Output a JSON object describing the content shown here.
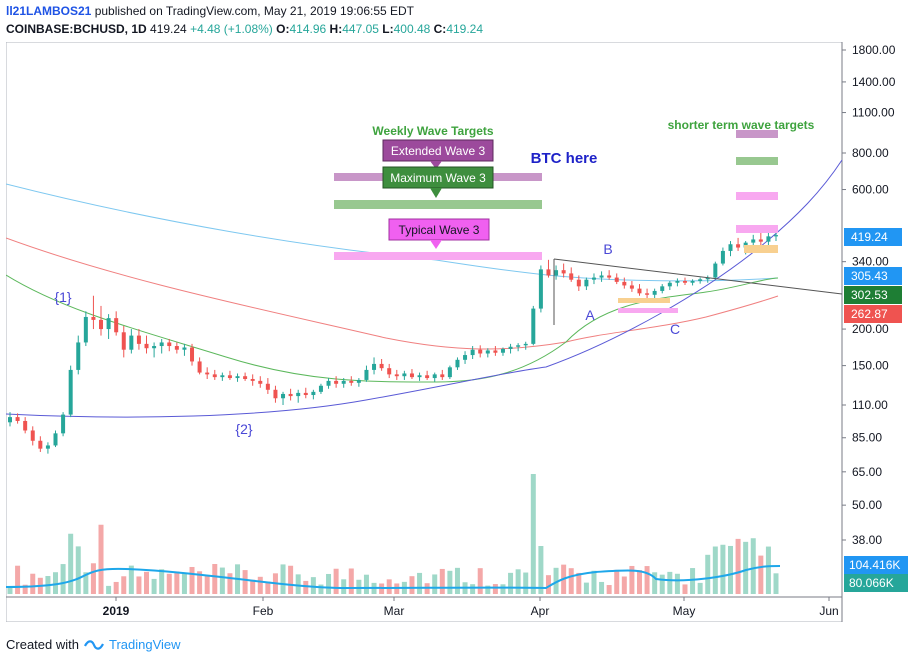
{
  "header": {
    "author": "ll21LAMBOS21",
    "published_text": "published on TradingView.com, May 21, 2019 19:06:55 EDT",
    "symbol": "COINBASE:BCHUSD, 1D",
    "last": "419.24",
    "change": "+4.48 (+1.08%)",
    "o_label": "O:",
    "o_value": "414.96",
    "h_label": "H:",
    "h_value": "447.05",
    "l_label": "L:",
    "l_value": "400.48",
    "c_label": "C:",
    "c_value": "419.24"
  },
  "footer": {
    "created_with": "Created with",
    "brand": "TradingView"
  },
  "chart_data": {
    "type": "candlestick",
    "y_scale": "log",
    "y_ticks": [
      "1800.00",
      "1400.00",
      "1100.00",
      "800.00",
      "600.00",
      "340.00",
      "200.00",
      "150.00",
      "110.00",
      "85.00",
      "65.00",
      "50.00",
      "38.00"
    ],
    "y_tick_values": [
      1800,
      1400,
      1100,
      800,
      600,
      340,
      200,
      150,
      110,
      85,
      65,
      50,
      38
    ],
    "x_labels": [
      "2019",
      "Feb",
      "Mar",
      "Apr",
      "May",
      "Jun"
    ],
    "price_tags": [
      {
        "label": "419.24",
        "value": 419.24,
        "color": "#2196f3"
      },
      {
        "label": "305.43",
        "value": 305.43,
        "color": "#2196f3"
      },
      {
        "label": "302.53",
        "value": 302.53,
        "color": "#1e7e34"
      },
      {
        "label": "262.87",
        "value": 262.87,
        "color": "#ef5350"
      }
    ],
    "volume_tags": [
      {
        "label": "104.416K",
        "color": "#2196f3"
      },
      {
        "label": "80.066K",
        "color": "#26a69a"
      }
    ],
    "candles": [
      [
        96,
        104,
        93,
        100
      ],
      [
        100,
        103,
        95,
        97
      ],
      [
        97,
        100,
        88,
        90
      ],
      [
        90,
        93,
        80,
        83
      ],
      [
        83,
        86,
        76,
        78
      ],
      [
        78,
        82,
        75,
        80
      ],
      [
        80,
        90,
        79,
        88
      ],
      [
        88,
        104,
        86,
        102
      ],
      [
        102,
        150,
        100,
        145
      ],
      [
        145,
        190,
        140,
        180
      ],
      [
        180,
        230,
        175,
        220
      ],
      [
        220,
        260,
        200,
        215
      ],
      [
        215,
        240,
        190,
        200
      ],
      [
        200,
        225,
        185,
        218
      ],
      [
        218,
        230,
        190,
        195
      ],
      [
        195,
        205,
        160,
        170
      ],
      [
        170,
        200,
        165,
        190
      ],
      [
        190,
        200,
        170,
        178
      ],
      [
        178,
        190,
        165,
        172
      ],
      [
        172,
        180,
        160,
        175
      ],
      [
        175,
        185,
        165,
        180
      ],
      [
        180,
        185,
        168,
        175
      ],
      [
        175,
        180,
        165,
        170
      ],
      [
        170,
        178,
        162,
        173
      ],
      [
        173,
        178,
        150,
        155
      ],
      [
        155,
        160,
        140,
        142
      ],
      [
        142,
        148,
        135,
        140
      ],
      [
        140,
        145,
        134,
        137
      ],
      [
        137,
        142,
        133,
        139
      ],
      [
        139,
        144,
        134,
        136
      ],
      [
        136,
        141,
        132,
        138
      ],
      [
        138,
        142,
        133,
        135
      ],
      [
        135,
        140,
        128,
        133
      ],
      [
        133,
        138,
        126,
        130
      ],
      [
        130,
        136,
        120,
        124
      ],
      [
        124,
        128,
        112,
        116
      ],
      [
        116,
        122,
        110,
        120
      ],
      [
        120,
        125,
        114,
        118
      ],
      [
        118,
        124,
        112,
        121
      ],
      [
        121,
        126,
        116,
        119
      ],
      [
        119,
        124,
        115,
        122
      ],
      [
        122,
        130,
        120,
        128
      ],
      [
        128,
        136,
        125,
        133
      ],
      [
        133,
        138,
        126,
        130
      ],
      [
        130,
        136,
        126,
        133
      ],
      [
        133,
        138,
        128,
        131
      ],
      [
        131,
        136,
        127,
        134
      ],
      [
        134,
        150,
        132,
        145
      ],
      [
        145,
        160,
        140,
        152
      ],
      [
        152,
        158,
        144,
        147
      ],
      [
        147,
        152,
        136,
        140
      ],
      [
        140,
        145,
        134,
        138
      ],
      [
        138,
        144,
        134,
        141
      ],
      [
        141,
        146,
        135,
        137
      ],
      [
        137,
        142,
        133,
        139
      ],
      [
        139,
        144,
        134,
        136
      ],
      [
        136,
        142,
        132,
        140
      ],
      [
        140,
        145,
        134,
        137
      ],
      [
        137,
        150,
        135,
        148
      ],
      [
        148,
        160,
        145,
        157
      ],
      [
        157,
        168,
        152,
        163
      ],
      [
        163,
        175,
        158,
        170
      ],
      [
        170,
        176,
        160,
        165
      ],
      [
        165,
        172,
        160,
        169
      ],
      [
        169,
        175,
        162,
        166
      ],
      [
        166,
        173,
        162,
        171
      ],
      [
        171,
        178,
        165,
        174
      ],
      [
        174,
        179,
        168,
        176
      ],
      [
        176,
        181,
        170,
        178
      ],
      [
        178,
        240,
        176,
        235
      ],
      [
        235,
        330,
        228,
        320
      ],
      [
        320,
        345,
        300,
        305
      ],
      [
        305,
        330,
        295,
        318
      ],
      [
        318,
        335,
        300,
        310
      ],
      [
        310,
        325,
        290,
        295
      ],
      [
        295,
        305,
        270,
        280
      ],
      [
        280,
        300,
        272,
        295
      ],
      [
        295,
        310,
        285,
        300
      ],
      [
        300,
        315,
        290,
        305
      ],
      [
        305,
        318,
        295,
        300
      ],
      [
        300,
        310,
        285,
        290
      ],
      [
        290,
        300,
        275,
        282
      ],
      [
        282,
        292,
        268,
        275
      ],
      [
        275,
        285,
        260,
        265
      ],
      [
        265,
        275,
        255,
        262
      ],
      [
        262,
        275,
        250,
        270
      ],
      [
        270,
        285,
        265,
        280
      ],
      [
        280,
        292,
        272,
        288
      ],
      [
        288,
        298,
        280,
        292
      ],
      [
        292,
        300,
        283,
        288
      ],
      [
        288,
        296,
        282,
        292
      ],
      [
        292,
        300,
        286,
        296
      ],
      [
        296,
        305,
        288,
        300
      ],
      [
        300,
        340,
        295,
        335
      ],
      [
        335,
        380,
        330,
        370
      ],
      [
        370,
        400,
        355,
        390
      ],
      [
        390,
        410,
        370,
        380
      ],
      [
        380,
        400,
        360,
        395
      ],
      [
        395,
        420,
        380,
        405
      ],
      [
        405,
        440,
        385,
        398
      ],
      [
        398,
        430,
        380,
        415
      ],
      [
        415,
        447,
        400,
        419
      ]
    ],
    "series": [
      {
        "name": "",
        "color": "#7ec8f0"
      },
      {
        "name": "",
        "color": "#f08080"
      },
      {
        "name": "",
        "color": "#5cb85c"
      },
      {
        "name": "",
        "color": "#5a5ad6"
      }
    ]
  },
  "annotations": {
    "weekly_title": "Weekly Wave Targets",
    "extended": "Extended Wave 3",
    "maximum": "Maximum Wave 3",
    "typical": "Typical Wave 3",
    "btc_here": "BTC here",
    "short_term": "shorter term wave targets",
    "wave1": "{1}",
    "wave2": "{2}",
    "waveA": "A",
    "waveB": "B",
    "waveC": "C"
  }
}
